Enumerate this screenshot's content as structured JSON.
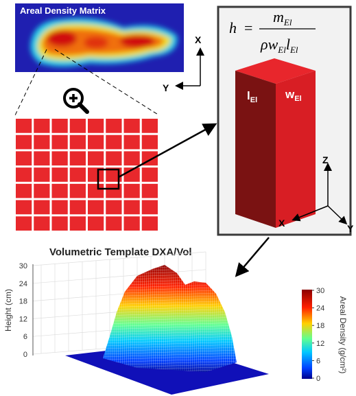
{
  "top_image": {
    "title": "Areal Density Matrix",
    "axis_x": "X",
    "axis_y": "Y"
  },
  "formula": {
    "lhs": "h",
    "equals": "=",
    "numerator": {
      "base": "m",
      "sub": "El"
    },
    "denominator": [
      {
        "base": "ρ"
      },
      {
        "base": "w",
        "sub": "El"
      },
      {
        "base": "l",
        "sub": "El"
      }
    ]
  },
  "element": {
    "left_face": {
      "base": "l",
      "sub": "El"
    },
    "right_face": {
      "base": "w",
      "sub": "El"
    },
    "axes": {
      "z": "Z",
      "x": "X",
      "y": "Y"
    }
  },
  "plot": {
    "title": "Volumetric Template DXA/Vol",
    "y_label": "Height (cm)",
    "y_ticks": [
      30,
      24,
      18,
      12,
      6,
      0
    ],
    "colorbar_label": "Areal Density (g/cm²)",
    "colorbar_ticks": [
      30,
      24,
      18,
      12,
      6,
      0
    ]
  }
}
